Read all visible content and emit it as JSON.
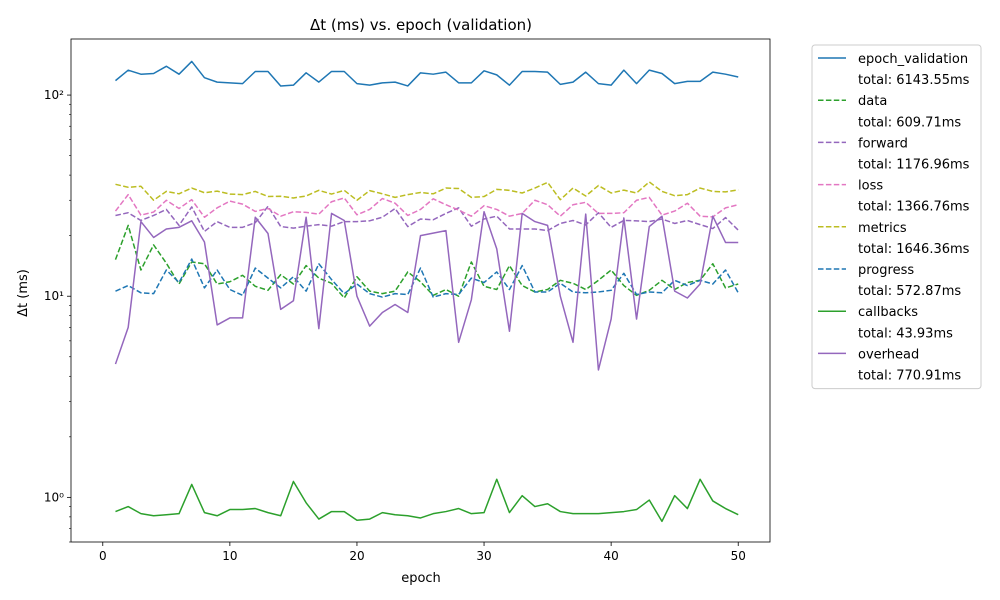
{
  "chart_data": {
    "type": "line",
    "title": "Δt (ms) vs. epoch (validation)",
    "xlabel": "epoch",
    "ylabel": "Δt (ms)",
    "yscale": "log",
    "xlim": [
      -2.5,
      52.5
    ],
    "ylim": [
      0.6,
      190
    ],
    "xticks": [
      0,
      10,
      20,
      30,
      40,
      50
    ],
    "xtick_labels": [
      "0",
      "10",
      "20",
      "30",
      "40",
      "50"
    ],
    "yticks": [
      1,
      10,
      100
    ],
    "ytick_labels": [
      "10⁰",
      "10¹",
      "10²"
    ],
    "grid": false,
    "legend_position": "outside-right",
    "x": [
      1,
      2,
      3,
      4,
      5,
      6,
      7,
      8,
      9,
      10,
      11,
      12,
      13,
      14,
      15,
      16,
      17,
      18,
      19,
      20,
      21,
      22,
      23,
      24,
      25,
      26,
      27,
      28,
      29,
      30,
      31,
      32,
      33,
      34,
      35,
      36,
      37,
      38,
      39,
      40,
      41,
      42,
      43,
      44,
      45,
      46,
      47,
      48,
      49,
      50
    ],
    "series": [
      {
        "name": "epoch_validation",
        "total": "total: 6143.55ms",
        "color": "#1f77b4",
        "dash": "solid",
        "values": [
          118,
          133,
          127,
          128,
          139,
          127,
          147,
          122,
          116,
          115,
          114,
          131,
          131,
          111,
          112,
          129,
          116,
          131,
          131,
          114,
          112,
          115,
          116,
          111,
          129,
          127,
          130,
          115,
          115,
          132,
          126,
          112,
          131,
          131,
          130,
          113,
          116,
          130,
          114,
          112,
          133,
          114,
          133,
          128,
          114,
          117,
          117,
          130,
          127,
          123
        ]
      },
      {
        "name": "data",
        "total": "total: 609.71ms",
        "color": "#2ca02c",
        "dash": "dashed",
        "values": [
          15.2,
          22.5,
          13.5,
          18,
          14.6,
          11.5,
          14.8,
          14.5,
          11.5,
          11.8,
          12.7,
          11.2,
          10.7,
          12.8,
          11.5,
          14.2,
          12.3,
          11.6,
          9.8,
          12.5,
          10.6,
          10.3,
          10.6,
          13.2,
          11.8,
          10.1,
          10.8,
          10,
          14.8,
          11.2,
          10.8,
          14.2,
          11.3,
          10.5,
          10.8,
          12,
          11.6,
          10.8,
          12,
          13.5,
          11.3,
          10.1,
          10.7,
          12,
          10.8,
          11.7,
          12,
          14.5,
          11,
          11.5
        ]
      },
      {
        "name": "forward",
        "total": "total: 1176.96ms",
        "color": "#9467bd",
        "dash": "dashed",
        "values": [
          25.2,
          26,
          23.8,
          25.2,
          27,
          22.5,
          27.8,
          21,
          23.5,
          22,
          22,
          23.2,
          28,
          22.2,
          21.8,
          22.3,
          22.7,
          22.3,
          23.5,
          23.5,
          23.7,
          24.7,
          27.3,
          22.2,
          24.2,
          24,
          25.8,
          27.5,
          22.3,
          24.2,
          25,
          21.6,
          21.6,
          21.6,
          21.2,
          23,
          23.8,
          22.6,
          26,
          22,
          23.8,
          23.7,
          23.5,
          24.2,
          23,
          23.8,
          22.7,
          21.7,
          24.6,
          21.3
        ]
      },
      {
        "name": "loss",
        "total": "total: 1366.76ms",
        "color": "#e377c2",
        "dash": "dashed",
        "values": [
          26.5,
          32,
          25.3,
          26.2,
          30,
          27.3,
          30.2,
          24.7,
          27.5,
          29.7,
          28.7,
          26.4,
          27.3,
          25,
          26.3,
          26.1,
          25.6,
          29.5,
          30.8,
          25.4,
          27,
          30.6,
          29,
          25.2,
          27,
          30.5,
          28.5,
          26.8,
          25,
          28.2,
          27,
          25,
          25.8,
          30,
          28.5,
          25,
          28.5,
          29.3,
          25.8,
          25.8,
          26,
          30,
          31,
          25.3,
          26.5,
          29,
          25,
          24.8,
          27.5,
          28.5
        ]
      },
      {
        "name": "metrics",
        "total": "total: 1646.36ms",
        "color": "#bcbd22",
        "dash": "dashed",
        "values": [
          36,
          34.8,
          35.2,
          30,
          33.2,
          32.3,
          34.5,
          32.7,
          33.3,
          32.2,
          32,
          33.2,
          31.3,
          31.4,
          30.8,
          31.5,
          33.6,
          32.2,
          33.6,
          30,
          33.5,
          32.3,
          31,
          32,
          32.8,
          32.3,
          34.5,
          34.3,
          31,
          31.3,
          34,
          33.6,
          32.6,
          34.5,
          36.8,
          30.2,
          34.5,
          31.5,
          35.5,
          32.6,
          33.7,
          32.6,
          37,
          33.2,
          31.6,
          32,
          34.5,
          33.2,
          33,
          33.8
        ]
      },
      {
        "name": "progress",
        "total": "total: 572.87ms",
        "color": "#1f77b4",
        "dash": "dashed",
        "values": [
          10.6,
          11.3,
          10.4,
          10.3,
          13.5,
          11.7,
          15.3,
          11,
          13.5,
          10.8,
          10.1,
          13.8,
          12.3,
          11,
          12.5,
          10.6,
          14.5,
          12.1,
          10.3,
          11.5,
          10.3,
          9.9,
          10.3,
          10.2,
          13.8,
          9.9,
          10.3,
          10.2,
          12.3,
          11.7,
          13.2,
          10.8,
          14.2,
          10.5,
          10.5,
          11.6,
          10.5,
          10.4,
          10.5,
          10.7,
          13,
          10.2,
          10.5,
          10.4,
          12,
          11.3,
          12,
          11.5,
          13.5,
          10.4
        ]
      },
      {
        "name": "callbacks",
        "total": "total: 43.93ms",
        "color": "#2ca02c",
        "dash": "solid",
        "values": [
          0.85,
          0.9,
          0.83,
          0.81,
          0.82,
          0.83,
          1.16,
          0.84,
          0.81,
          0.87,
          0.87,
          0.88,
          0.84,
          0.81,
          1.2,
          0.94,
          0.78,
          0.85,
          0.85,
          0.77,
          0.78,
          0.84,
          0.82,
          0.81,
          0.79,
          0.83,
          0.85,
          0.88,
          0.83,
          0.84,
          1.23,
          0.84,
          1.02,
          0.9,
          0.93,
          0.85,
          0.83,
          0.83,
          0.83,
          0.84,
          0.85,
          0.87,
          0.97,
          0.76,
          1.02,
          0.88,
          1.23,
          0.96,
          0.88,
          0.82
        ]
      },
      {
        "name": "overhead",
        "total": "total: 770.91ms",
        "color": "#9467bd",
        "dash": "solid",
        "values": [
          4.6,
          7,
          23.5,
          19.6,
          21.6,
          22,
          23.7,
          18.6,
          7.2,
          7.8,
          7.8,
          24.7,
          20.5,
          8.6,
          9.5,
          24.7,
          6.9,
          25.8,
          23.8,
          10,
          7.1,
          8.3,
          9.1,
          8.3,
          20,
          20.6,
          21.2,
          5.9,
          9.6,
          26.3,
          17.2,
          6.7,
          25.8,
          23.5,
          22.5,
          10,
          5.9,
          25.6,
          4.3,
          7.7,
          24.5,
          7.7,
          22.2,
          25,
          10.6,
          9.8,
          11.5,
          25,
          18.5,
          18.5
        ]
      }
    ]
  }
}
